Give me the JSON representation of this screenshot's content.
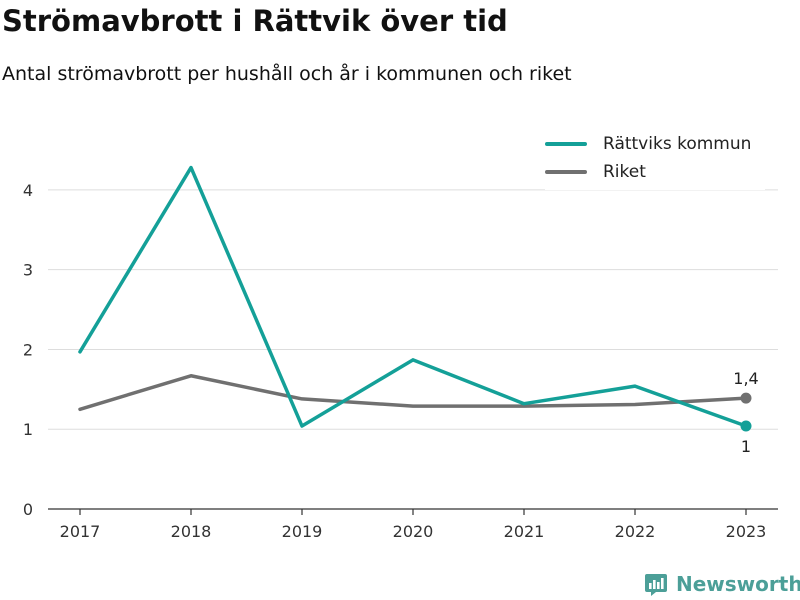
{
  "header": {
    "title": "Strömavbrott i Rättvik över tid",
    "subtitle": "Antal strömavbrott per hushåll och år i kommunen och riket"
  },
  "brand": {
    "name": "Newsworthy",
    "icon": "newsworthy-chart-logo-icon",
    "color": "#4c9f98"
  },
  "chart_data": {
    "type": "line",
    "title": "Strömavbrott i Rättvik över tid",
    "subtitle": "Antal strömavbrott per hushåll och år i kommunen och riket",
    "xlabel": "",
    "ylabel": "",
    "x": [
      "2017",
      "2018",
      "2019",
      "2020",
      "2021",
      "2022",
      "2023"
    ],
    "ylim": [
      0,
      4.5
    ],
    "yticks": [
      "0",
      "1",
      "2",
      "3",
      "4"
    ],
    "grid": true,
    "legend_position": "top-right",
    "series": [
      {
        "name": "Rättviks kommun",
        "color": "#14a098",
        "values": [
          1.97,
          4.28,
          1.04,
          1.87,
          1.32,
          1.54,
          1.04
        ],
        "end_label": "1"
      },
      {
        "name": "Riket",
        "color": "#707070",
        "values": [
          1.25,
          1.67,
          1.38,
          1.29,
          1.29,
          1.31,
          1.39
        ],
        "end_label": "1,4"
      }
    ]
  }
}
